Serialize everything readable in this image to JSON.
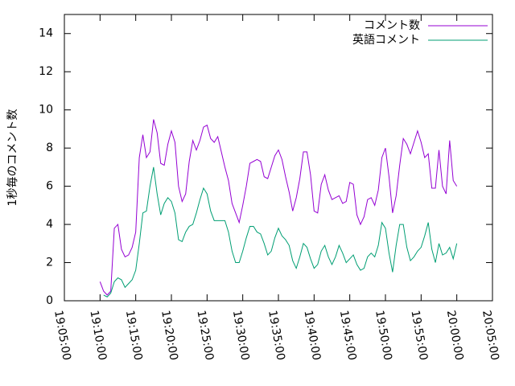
{
  "chart_data": {
    "type": "line",
    "ylabel": "1秒毎のコメント数",
    "x": [
      "19:10:00",
      "19:10:30",
      "19:11:00",
      "19:11:30",
      "19:12:00",
      "19:12:30",
      "19:13:00",
      "19:13:30",
      "19:14:00",
      "19:14:30",
      "19:15:00",
      "19:15:30",
      "19:16:00",
      "19:16:30",
      "19:17:00",
      "19:17:30",
      "19:18:00",
      "19:18:30",
      "19:19:00",
      "19:19:30",
      "19:20:00",
      "19:20:30",
      "19:21:00",
      "19:21:30",
      "19:22:00",
      "19:22:30",
      "19:23:00",
      "19:23:30",
      "19:24:00",
      "19:24:30",
      "19:25:00",
      "19:25:30",
      "19:26:00",
      "19:26:30",
      "19:27:00",
      "19:27:30",
      "19:28:00",
      "19:28:30",
      "19:29:00",
      "19:29:30",
      "19:30:00",
      "19:30:30",
      "19:31:00",
      "19:31:30",
      "19:32:00",
      "19:32:30",
      "19:33:00",
      "19:33:30",
      "19:34:00",
      "19:34:30",
      "19:35:00",
      "19:35:30",
      "19:36:00",
      "19:36:30",
      "19:37:00",
      "19:37:30",
      "19:38:00",
      "19:38:30",
      "19:39:00",
      "19:39:30",
      "19:40:00",
      "19:40:30",
      "19:41:00",
      "19:41:30",
      "19:42:00",
      "19:42:30",
      "19:43:00",
      "19:43:30",
      "19:44:00",
      "19:44:30",
      "19:45:00",
      "19:45:30",
      "19:46:00",
      "19:46:30",
      "19:47:00",
      "19:47:30",
      "19:48:00",
      "19:48:30",
      "19:49:00",
      "19:49:30",
      "19:50:00",
      "19:50:30",
      "19:51:00",
      "19:51:30",
      "19:52:00",
      "19:52:30",
      "19:53:00",
      "19:53:30",
      "19:54:00",
      "19:54:30",
      "19:55:00",
      "19:55:30",
      "19:56:00",
      "19:56:30",
      "19:57:00",
      "19:57:30",
      "19:58:00",
      "19:58:30",
      "19:59:00",
      "19:59:30",
      "20:00:00"
    ],
    "series": [
      {
        "name": "コメント数",
        "color": "#9400d3",
        "values": [
          1.0,
          0.5,
          0.3,
          0.5,
          3.8,
          4.0,
          2.7,
          2.3,
          2.4,
          2.8,
          3.6,
          7.5,
          8.7,
          7.5,
          7.8,
          9.5,
          8.8,
          7.2,
          7.1,
          8.2,
          8.9,
          8.3,
          6.0,
          5.2,
          5.6,
          7.3,
          8.4,
          7.9,
          8.4,
          9.1,
          9.2,
          8.5,
          8.3,
          8.6,
          7.8,
          7.0,
          6.3,
          5.1,
          4.6,
          4.1,
          5.0,
          6.0,
          7.2,
          7.3,
          7.4,
          7.3,
          6.5,
          6.4,
          7.0,
          7.6,
          7.9,
          7.4,
          6.5,
          5.7,
          4.7,
          5.4,
          6.4,
          7.8,
          7.8,
          6.6,
          4.7,
          4.6,
          6.1,
          6.6,
          5.8,
          5.3,
          5.4,
          5.5,
          5.1,
          5.2,
          6.2,
          6.1,
          4.5,
          4.0,
          4.4,
          5.3,
          5.4,
          5.0,
          5.8,
          7.5,
          8.0,
          6.5,
          4.6,
          5.5,
          7.1,
          8.5,
          8.2,
          7.7,
          8.3,
          8.9,
          8.3,
          7.5,
          7.7,
          5.9,
          5.9,
          7.9,
          6.0,
          5.6,
          8.4,
          6.3,
          6.0
        ]
      },
      {
        "name": "英語コメント",
        "color": "#009e73",
        "values": [
          null,
          0.3,
          0.2,
          0.4,
          1.0,
          1.2,
          1.1,
          0.7,
          0.9,
          1.1,
          1.6,
          3.0,
          4.6,
          4.7,
          6.0,
          7.0,
          5.6,
          4.5,
          5.1,
          5.4,
          5.2,
          4.6,
          3.2,
          3.1,
          3.6,
          3.9,
          4.0,
          4.6,
          5.3,
          5.9,
          5.6,
          4.7,
          4.2,
          4.2,
          4.2,
          4.2,
          3.6,
          2.6,
          2.0,
          2.0,
          2.6,
          3.3,
          3.9,
          3.9,
          3.6,
          3.5,
          3.0,
          2.4,
          2.6,
          3.3,
          3.8,
          3.4,
          3.2,
          2.9,
          2.1,
          1.7,
          2.3,
          3.0,
          2.8,
          2.2,
          1.7,
          1.9,
          2.6,
          2.9,
          2.3,
          1.9,
          2.3,
          2.9,
          2.5,
          2.0,
          2.2,
          2.4,
          1.9,
          1.6,
          1.7,
          2.3,
          2.5,
          2.3,
          2.9,
          4.1,
          3.8,
          2.5,
          1.5,
          2.9,
          4.0,
          4.0,
          2.8,
          2.1,
          2.3,
          2.6,
          2.8,
          3.4,
          4.1,
          2.7,
          2.0,
          3.0,
          2.4,
          2.5,
          2.8,
          2.2,
          3.0
        ]
      }
    ],
    "xlim": [
      "19:05:00",
      "20:05:00"
    ],
    "xticks": [
      "19:05:00",
      "19:10:00",
      "19:15:00",
      "19:20:00",
      "19:25:00",
      "19:30:00",
      "19:35:00",
      "19:40:00",
      "19:45:00",
      "19:50:00",
      "19:55:00",
      "20:00:00",
      "20:05:00"
    ],
    "ylim": [
      0,
      15
    ],
    "yticks": [
      0,
      2,
      4,
      6,
      8,
      10,
      12,
      14
    ],
    "legend": "top-right"
  }
}
